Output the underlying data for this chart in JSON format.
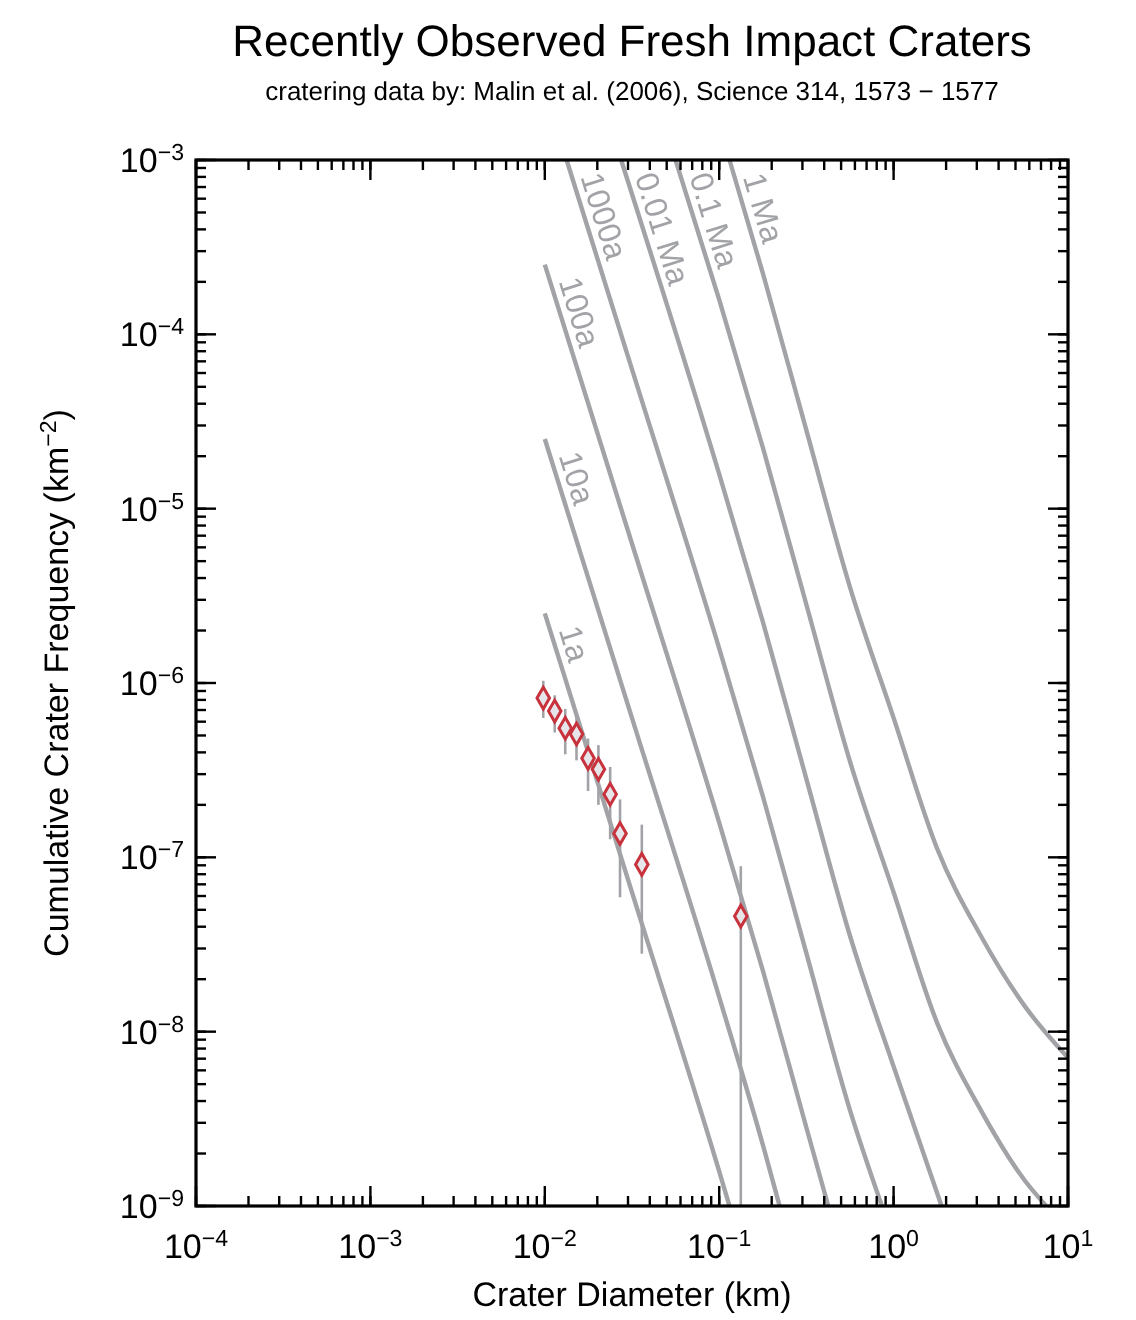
{
  "chart_data": {
    "type": "scatter",
    "title": "Recently Observed Fresh Impact Craters",
    "subtitle": "cratering data by: Malin et al. (2006), Science 314, 1573 − 1577",
    "xlabel": "Crater Diameter (km)",
    "ylabel": "Cumulative Crater Frequency (km$^{−2}$)",
    "log": "xy",
    "xlim": [
      0.0001,
      10
    ],
    "ylim": [
      1e-09,
      0.001
    ],
    "xticks": [
      {
        "value": 0.0001,
        "label": "10$^{−4}$"
      },
      {
        "value": 0.001,
        "label": "10$^{−3}$"
      },
      {
        "value": 0.01,
        "label": "10$^{−2}$"
      },
      {
        "value": 0.1,
        "label": "10$^{−1}$"
      },
      {
        "value": 1,
        "label": "10$^{0}$"
      },
      {
        "value": 10,
        "label": "10$^{1}$"
      }
    ],
    "yticks": [
      {
        "value": 1e-09,
        "label": "10$^{−9}$"
      },
      {
        "value": 1e-08,
        "label": "10$^{−8}$"
      },
      {
        "value": 1e-07,
        "label": "10$^{−7}$"
      },
      {
        "value": 1e-06,
        "label": "10$^{−6}$"
      },
      {
        "value": 1e-05,
        "label": "10$^{−5}$"
      },
      {
        "value": 0.0001,
        "label": "10$^{−4}$"
      },
      {
        "value": 0.001,
        "label": "10$^{−3}$"
      }
    ],
    "series": [
      {
        "type": "line",
        "name": "1a",
        "color": "#a2a3a7",
        "x": [
          0.01,
          0.0316,
          0.1,
          0.1146
        ],
        "values": [
          2.51e-06,
          6.31e-08,
          1.58e-09,
          1e-09
        ]
      },
      {
        "type": "line",
        "name": "10a",
        "color": "#a2a3a7",
        "x": [
          0.01,
          0.0316,
          0.1,
          0.178,
          0.222
        ],
        "values": [
          2.51e-05,
          6.31e-07,
          1.58e-08,
          2.24e-09,
          1e-09
        ]
      },
      {
        "type": "line",
        "name": "100a",
        "color": "#a2a3a7",
        "x": [
          0.01,
          0.0316,
          0.1,
          0.178,
          0.316,
          0.422
        ],
        "values": [
          0.000251,
          6.31e-06,
          1.58e-07,
          2.24e-08,
          2.82e-09,
          1e-09
        ]
      },
      {
        "type": "line",
        "name": "1000a",
        "color": "#a2a3a7",
        "x": [
          0.01334,
          0.0316,
          0.1,
          0.178,
          0.316,
          0.562,
          0.857
        ],
        "values": [
          0.001,
          6.31e-05,
          1.58e-06,
          2.24e-07,
          2.82e-08,
          3.55e-09,
          1e-09
        ]
      },
      {
        "type": "line",
        "name": "0.01 Ma",
        "color": "#a2a3a7",
        "x": [
          0.0274,
          0.1,
          0.178,
          0.316,
          0.562,
          1,
          1.884
        ],
        "values": [
          0.001,
          1.58e-05,
          2.24e-06,
          2.82e-07,
          3.55e-08,
          6.31e-09,
          1e-09
        ]
      },
      {
        "type": "line",
        "name": "0.1 Ma",
        "color": "#a2a3a7",
        "x": [
          0.0562,
          0.1,
          0.178,
          0.316,
          0.562,
          1,
          1.778,
          3.162,
          5.623,
          7.5
        ],
        "values": [
          0.001,
          0.000158,
          2.24e-05,
          2.82e-06,
          3.55e-07,
          6.31e-08,
          1.12e-08,
          3.55e-09,
          1.41e-09,
          1e-09
        ]
      },
      {
        "type": "line",
        "name": "1 Ma",
        "color": "#a2a3a7",
        "x": [
          0.1146,
          0.178,
          0.316,
          0.562,
          1,
          1.778,
          3.162,
          5.623,
          10
        ],
        "values": [
          0.001,
          0.000224,
          2.82e-05,
          3.55e-06,
          6.31e-07,
          1.12e-07,
          3.55e-08,
          1.41e-08,
          7.08e-09
        ]
      },
      {
        "color": "#c8323c",
        "marker": "diamond",
        "x": [
          0.0098,
          0.0114,
          0.0131,
          0.0152,
          0.0177,
          0.0203,
          0.0237,
          0.027,
          0.036,
          0.133
        ],
        "values": [
          8.2e-07,
          6.9e-07,
          5.5e-07,
          5.1e-07,
          3.7e-07,
          3.2e-07,
          2.3e-07,
          1.37e-07,
          9.1e-08,
          4.6e-08
        ],
        "errors": [
          [
            6.3e-07,
            1.03e-06
          ],
          [
            5.2e-07,
            8.5e-07
          ],
          [
            3.9e-07,
            7.1e-07
          ],
          [
            3.6e-07,
            6.5e-07
          ],
          [
            2.4e-07,
            4.8e-07
          ],
          [
            2e-07,
            4.4e-07
          ],
          [
            1.27e-07,
            3.3e-07
          ],
          [
            5.9e-08,
            2.15e-07
          ],
          [
            2.8e-08,
            1.54e-07
          ],
          [
            1e-09,
            8.9e-08
          ]
        ]
      }
    ]
  }
}
